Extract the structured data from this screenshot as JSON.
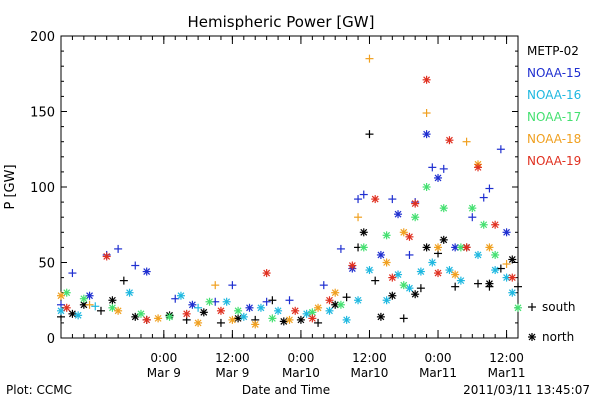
{
  "chart_data": {
    "type": "scatter",
    "title": "Hemispheric Power [GW]",
    "ylabel": "P [GW]",
    "xlabel": "Date and Time",
    "ylim": [
      0,
      200
    ],
    "yticks": [
      0,
      50,
      100,
      150,
      200
    ],
    "xlim": [
      "2011-03-08 06:00",
      "2011-03-11 14:00"
    ],
    "xticks": [
      {
        "x": "2011-03-09 00:00",
        "time": "0:00",
        "date": "Mar 9"
      },
      {
        "x": "2011-03-09 12:00",
        "time": "12:00",
        "date": "Mar 9"
      },
      {
        "x": "2011-03-10 00:00",
        "time": "0:00",
        "date": "Mar10"
      },
      {
        "x": "2011-03-10 12:00",
        "time": "12:00",
        "date": "Mar10"
      },
      {
        "x": "2011-03-11 00:00",
        "time": "0:00",
        "date": "Mar11"
      },
      {
        "x": "2011-03-11 12:00",
        "time": "12:00",
        "date": "Mar11"
      }
    ],
    "legend": {
      "placement": "right",
      "series_labels": [
        "METP-02",
        "NOAA-15",
        "NOAA-16",
        "NOAA-17",
        "NOAA-18",
        "NOAA-19"
      ],
      "marker_labels": [
        {
          "symbol": "+",
          "label": "south"
        },
        {
          "symbol": "*",
          "label": "north"
        }
      ]
    },
    "series": [
      {
        "name": "METP-02",
        "color": "#000000",
        "points": [
          [
            "2011-03-08 06:00",
            14,
            "+"
          ],
          [
            "2011-03-08 08:00",
            16,
            "*"
          ],
          [
            "2011-03-08 10:00",
            22,
            "*"
          ],
          [
            "2011-03-08 13:00",
            18,
            "+"
          ],
          [
            "2011-03-08 15:00",
            25,
            "*"
          ],
          [
            "2011-03-08 17:00",
            38,
            "+"
          ],
          [
            "2011-03-08 19:00",
            14,
            "*"
          ],
          [
            "2011-03-08 21:00",
            12,
            "+"
          ],
          [
            "2011-03-09 01:00",
            15,
            "*"
          ],
          [
            "2011-03-09 04:00",
            12,
            "+"
          ],
          [
            "2011-03-09 07:00",
            17,
            "*"
          ],
          [
            "2011-03-09 10:00",
            10,
            "+"
          ],
          [
            "2011-03-09 13:00",
            13,
            "*"
          ],
          [
            "2011-03-09 16:00",
            12,
            "+"
          ],
          [
            "2011-03-09 19:00",
            25,
            "+"
          ],
          [
            "2011-03-09 21:00",
            11,
            "*"
          ],
          [
            "2011-03-10 00:00",
            12,
            "*"
          ],
          [
            "2011-03-10 03:00",
            10,
            "+"
          ],
          [
            "2011-03-10 06:00",
            22,
            "*"
          ],
          [
            "2011-03-10 08:00",
            27,
            "+"
          ],
          [
            "2011-03-10 10:00",
            60,
            "+"
          ],
          [
            "2011-03-10 11:00",
            70,
            "*"
          ],
          [
            "2011-03-10 13:00",
            38,
            "+"
          ],
          [
            "2011-03-10 14:00",
            14,
            "*"
          ],
          [
            "2011-03-10 16:00",
            28,
            "*"
          ],
          [
            "2011-03-10 18:00",
            13,
            "+"
          ],
          [
            "2011-03-10 20:00",
            29,
            "*"
          ],
          [
            "2011-03-10 21:00",
            33,
            "+"
          ],
          [
            "2011-03-10 22:00",
            60,
            "*"
          ],
          [
            "2011-03-11 00:00",
            56,
            "+"
          ],
          [
            "2011-03-11 01:00",
            65,
            "*"
          ],
          [
            "2011-03-11 03:00",
            34,
            "+"
          ],
          [
            "2011-03-11 05:00",
            60,
            "*"
          ],
          [
            "2011-03-11 07:00",
            36,
            "+"
          ],
          [
            "2011-03-11 09:00",
            36,
            "*"
          ],
          [
            "2011-03-11 11:00",
            46,
            "+"
          ],
          [
            "2011-03-11 13:00",
            52,
            "*"
          ],
          [
            "2011-03-11 14:00",
            34,
            "+"
          ],
          [
            "2011-03-10 12:00",
            135,
            "+"
          ],
          [
            "2011-03-11 09:00",
            34,
            "+"
          ]
        ]
      },
      {
        "name": "NOAA-15",
        "color": "#1f2fd0",
        "points": [
          [
            "2011-03-08 06:00",
            22,
            "+"
          ],
          [
            "2011-03-08 08:00",
            43,
            "+"
          ],
          [
            "2011-03-08 11:00",
            28,
            "*"
          ],
          [
            "2011-03-08 14:00",
            55,
            "+"
          ],
          [
            "2011-03-08 16:00",
            59,
            "+"
          ],
          [
            "2011-03-08 19:00",
            48,
            "+"
          ],
          [
            "2011-03-08 21:00",
            44,
            "*"
          ],
          [
            "2011-03-09 02:00",
            26,
            "+"
          ],
          [
            "2011-03-09 05:00",
            22,
            "*"
          ],
          [
            "2011-03-09 09:00",
            24,
            "+"
          ],
          [
            "2011-03-09 12:00",
            35,
            "+"
          ],
          [
            "2011-03-09 15:00",
            20,
            "*"
          ],
          [
            "2011-03-09 18:00",
            24,
            "+"
          ],
          [
            "2011-03-09 22:00",
            25,
            "+"
          ],
          [
            "2011-03-10 04:00",
            35,
            "+"
          ],
          [
            "2011-03-10 07:00",
            59,
            "+"
          ],
          [
            "2011-03-10 09:00",
            46,
            "*"
          ],
          [
            "2011-03-10 10:00",
            92,
            "+"
          ],
          [
            "2011-03-10 11:00",
            95,
            "+"
          ],
          [
            "2011-03-10 14:00",
            55,
            "*"
          ],
          [
            "2011-03-10 16:00",
            92,
            "+"
          ],
          [
            "2011-03-10 17:00",
            82,
            "*"
          ],
          [
            "2011-03-10 19:00",
            55,
            "+"
          ],
          [
            "2011-03-10 20:00",
            90,
            "+"
          ],
          [
            "2011-03-10 22:00",
            135,
            "*"
          ],
          [
            "2011-03-10 23:00",
            113,
            "+"
          ],
          [
            "2011-03-11 00:00",
            106,
            "*"
          ],
          [
            "2011-03-11 01:00",
            112,
            "+"
          ],
          [
            "2011-03-11 03:00",
            60,
            "*"
          ],
          [
            "2011-03-11 06:00",
            80,
            "+"
          ],
          [
            "2011-03-11 09:00",
            99,
            "+"
          ],
          [
            "2011-03-11 11:00",
            125,
            "+"
          ],
          [
            "2011-03-11 12:00",
            70,
            "*"
          ],
          [
            "2011-03-11 08:00",
            93,
            "+"
          ]
        ]
      },
      {
        "name": "NOAA-16",
        "color": "#1fb8e0",
        "points": [
          [
            "2011-03-08 06:00",
            18,
            "*"
          ],
          [
            "2011-03-08 09:00",
            15,
            "*"
          ],
          [
            "2011-03-08 12:00",
            21,
            "+"
          ],
          [
            "2011-03-08 18:00",
            30,
            "*"
          ],
          [
            "2011-03-09 03:00",
            28,
            "*"
          ],
          [
            "2011-03-09 06:00",
            20,
            "+"
          ],
          [
            "2011-03-09 11:00",
            24,
            "*"
          ],
          [
            "2011-03-09 14:00",
            14,
            "*"
          ],
          [
            "2011-03-09 17:00",
            20,
            "*"
          ],
          [
            "2011-03-09 20:00",
            18,
            "*"
          ],
          [
            "2011-03-10 01:00",
            16,
            "*"
          ],
          [
            "2011-03-10 05:00",
            18,
            "*"
          ],
          [
            "2011-03-10 08:00",
            12,
            "*"
          ],
          [
            "2011-03-10 10:00",
            25,
            "*"
          ],
          [
            "2011-03-10 12:00",
            45,
            "*"
          ],
          [
            "2011-03-10 15:00",
            25,
            "*"
          ],
          [
            "2011-03-10 17:00",
            42,
            "*"
          ],
          [
            "2011-03-10 19:00",
            33,
            "*"
          ],
          [
            "2011-03-10 21:00",
            44,
            "*"
          ],
          [
            "2011-03-10 23:00",
            50,
            "*"
          ],
          [
            "2011-03-11 02:00",
            45,
            "*"
          ],
          [
            "2011-03-11 04:00",
            38,
            "*"
          ],
          [
            "2011-03-11 07:00",
            55,
            "*"
          ],
          [
            "2011-03-11 10:00",
            45,
            "*"
          ],
          [
            "2011-03-11 13:00",
            30,
            "*"
          ],
          [
            "2011-03-11 12:00",
            40,
            "*"
          ]
        ]
      },
      {
        "name": "NOAA-17",
        "color": "#44e070",
        "points": [
          [
            "2011-03-08 07:00",
            30,
            "*"
          ],
          [
            "2011-03-08 10:00",
            26,
            "*"
          ],
          [
            "2011-03-08 15:00",
            20,
            "*"
          ],
          [
            "2011-03-08 20:00",
            16,
            "*"
          ],
          [
            "2011-03-09 01:00",
            14,
            "*"
          ],
          [
            "2011-03-09 08:00",
            24,
            "*"
          ],
          [
            "2011-03-09 13:00",
            18,
            "*"
          ],
          [
            "2011-03-09 19:00",
            13,
            "*"
          ],
          [
            "2011-03-10 02:00",
            17,
            "*"
          ],
          [
            "2011-03-10 07:00",
            22,
            "*"
          ],
          [
            "2011-03-10 11:00",
            60,
            "*"
          ],
          [
            "2011-03-10 15:00",
            68,
            "*"
          ],
          [
            "2011-03-10 18:00",
            35,
            "*"
          ],
          [
            "2011-03-10 20:00",
            80,
            "*"
          ],
          [
            "2011-03-10 22:00",
            100,
            "*"
          ],
          [
            "2011-03-11 01:00",
            86,
            "*"
          ],
          [
            "2011-03-11 04:00",
            60,
            "*"
          ],
          [
            "2011-03-11 06:00",
            86,
            "*"
          ],
          [
            "2011-03-11 08:00",
            75,
            "*"
          ],
          [
            "2011-03-11 10:00",
            55,
            "*"
          ],
          [
            "2011-03-11 14:00",
            20,
            "*"
          ]
        ]
      },
      {
        "name": "NOAA-18",
        "color": "#f0a020",
        "points": [
          [
            "2011-03-08 06:00",
            28,
            "*"
          ],
          [
            "2011-03-08 11:00",
            22,
            "+"
          ],
          [
            "2011-03-08 16:00",
            18,
            "*"
          ],
          [
            "2011-03-08 23:00",
            13,
            "*"
          ],
          [
            "2011-03-09 06:00",
            10,
            "*"
          ],
          [
            "2011-03-09 09:00",
            35,
            "+"
          ],
          [
            "2011-03-09 12:00",
            12,
            "*"
          ],
          [
            "2011-03-09 16:00",
            9,
            "*"
          ],
          [
            "2011-03-09 22:00",
            12,
            "*"
          ],
          [
            "2011-03-10 03:00",
            20,
            "*"
          ],
          [
            "2011-03-10 06:00",
            30,
            "*"
          ],
          [
            "2011-03-10 10:00",
            80,
            "+"
          ],
          [
            "2011-03-10 12:00",
            185,
            "+"
          ],
          [
            "2011-03-10 15:00",
            50,
            "*"
          ],
          [
            "2011-03-10 18:00",
            70,
            "*"
          ],
          [
            "2011-03-10 22:00",
            149,
            "+"
          ],
          [
            "2011-03-11 00:00",
            60,
            "*"
          ],
          [
            "2011-03-11 03:00",
            42,
            "*"
          ],
          [
            "2011-03-11 05:00",
            130,
            "+"
          ],
          [
            "2011-03-11 07:00",
            115,
            "*"
          ],
          [
            "2011-03-11 09:00",
            60,
            "*"
          ],
          [
            "2011-03-11 12:00",
            49,
            "+"
          ]
        ]
      },
      {
        "name": "NOAA-19",
        "color": "#e03020",
        "points": [
          [
            "2011-03-08 07:00",
            20,
            "*"
          ],
          [
            "2011-03-08 14:00",
            54,
            "*"
          ],
          [
            "2011-03-08 21:00",
            12,
            "*"
          ],
          [
            "2011-03-09 04:00",
            16,
            "*"
          ],
          [
            "2011-03-09 10:00",
            18,
            "*"
          ],
          [
            "2011-03-09 18:00",
            43,
            "*"
          ],
          [
            "2011-03-09 23:00",
            18,
            "*"
          ],
          [
            "2011-03-10 02:00",
            13,
            "*"
          ],
          [
            "2011-03-10 05:00",
            25,
            "*"
          ],
          [
            "2011-03-10 09:00",
            48,
            "*"
          ],
          [
            "2011-03-10 13:00",
            92,
            "*"
          ],
          [
            "2011-03-10 16:00",
            40,
            "*"
          ],
          [
            "2011-03-10 19:00",
            67,
            "*"
          ],
          [
            "2011-03-10 22:00",
            171,
            "*"
          ],
          [
            "2011-03-11 00:00",
            43,
            "*"
          ],
          [
            "2011-03-11 02:00",
            131,
            "*"
          ],
          [
            "2011-03-11 05:00",
            60,
            "*"
          ],
          [
            "2011-03-11 07:00",
            113,
            "*"
          ],
          [
            "2011-03-11 10:00",
            75,
            "*"
          ],
          [
            "2011-03-11 13:00",
            40,
            "*"
          ],
          [
            "2011-03-10 20:00",
            89,
            "*"
          ]
        ]
      }
    ]
  },
  "footer": {
    "left": "Plot: CCMC",
    "center": "Date and Time",
    "right": "2011/03/11  13:45:07"
  },
  "colors": {
    "axis": "#000000",
    "background": "#ffffff"
  }
}
